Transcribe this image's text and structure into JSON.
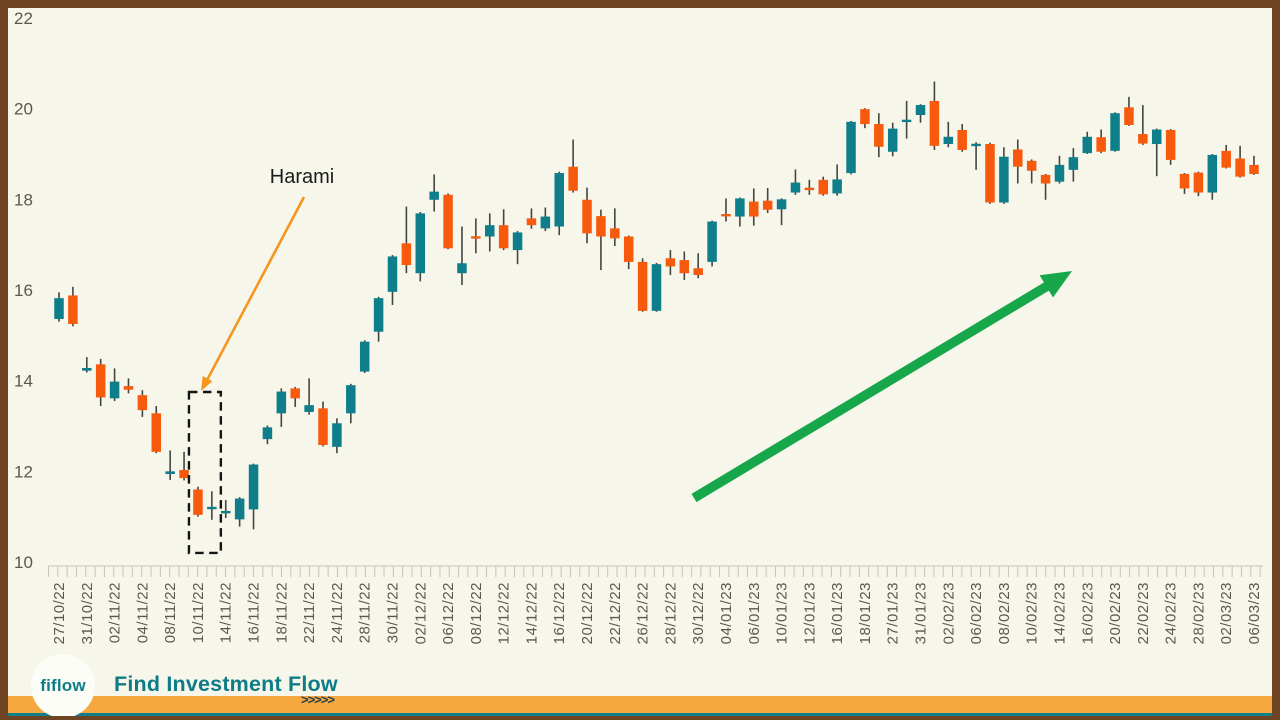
{
  "chart_data": {
    "type": "candlestick",
    "title": "",
    "y_axis": {
      "min": 10,
      "max": 22,
      "ticks": [
        22,
        20,
        18,
        16,
        14,
        12,
        10
      ]
    },
    "x_axis": {
      "labels": [
        "27/10/22",
        "31/10/22",
        "02/11/22",
        "04/11/22",
        "08/11/22",
        "10/11/22",
        "14/11/22",
        "16/11/22",
        "18/11/22",
        "22/11/22",
        "24/11/22",
        "28/11/22",
        "30/11/22",
        "02/12/22",
        "06/12/22",
        "08/12/22",
        "12/12/22",
        "14/12/22",
        "16/12/22",
        "20/12/22",
        "22/12/22",
        "26/12/22",
        "28/12/22",
        "30/12/22",
        "04/01/23",
        "06/01/23",
        "10/01/23",
        "12/01/23",
        "16/01/23",
        "18/01/23",
        "27/01/23",
        "31/01/23",
        "02/02/23",
        "06/02/23",
        "08/02/23",
        "10/02/23",
        "14/02/23",
        "16/02/23",
        "20/02/23",
        "22/02/23",
        "24/02/23",
        "28/02/23",
        "02/03/23",
        "06/03/23"
      ]
    },
    "grid": "off",
    "legend": "none",
    "candles": [
      {
        "date": "27/10/22",
        "o": 15.36,
        "h": 15.95,
        "l": 15.3,
        "c": 15.82
      },
      {
        "date": "",
        "o": 15.88,
        "h": 16.07,
        "l": 15.2,
        "c": 15.25
      },
      {
        "date": "31/10/22",
        "o": 14.22,
        "h": 14.52,
        "l": 14.18,
        "c": 14.28
      },
      {
        "date": "",
        "o": 14.36,
        "h": 14.48,
        "l": 13.44,
        "c": 13.63
      },
      {
        "date": "02/11/22",
        "o": 13.61,
        "h": 14.27,
        "l": 13.55,
        "c": 13.98
      },
      {
        "date": "",
        "o": 13.88,
        "h": 14.05,
        "l": 13.72,
        "c": 13.8
      },
      {
        "date": "04/11/22",
        "o": 13.68,
        "h": 13.79,
        "l": 13.2,
        "c": 13.35
      },
      {
        "date": "",
        "o": 13.28,
        "h": 13.44,
        "l": 12.4,
        "c": 12.43
      },
      {
        "date": "08/11/22",
        "o": 11.94,
        "h": 12.46,
        "l": 11.81,
        "c": 12.0
      },
      {
        "date": "",
        "o": 12.03,
        "h": 12.43,
        "l": 11.8,
        "c": 11.85
      },
      {
        "date": "10/11/22",
        "o": 11.6,
        "h": 11.66,
        "l": 11.0,
        "c": 11.04
      },
      {
        "date": "",
        "o": 11.17,
        "h": 11.56,
        "l": 10.93,
        "c": 11.21
      },
      {
        "date": "14/11/22",
        "o": 11.08,
        "h": 11.37,
        "l": 10.97,
        "c": 11.12
      },
      {
        "date": "",
        "o": 10.94,
        "h": 11.43,
        "l": 10.78,
        "c": 11.4
      },
      {
        "date": "16/11/22",
        "o": 11.16,
        "h": 12.17,
        "l": 10.72,
        "c": 12.15
      },
      {
        "date": "",
        "o": 12.71,
        "h": 13.01,
        "l": 12.6,
        "c": 12.97
      },
      {
        "date": "18/11/22",
        "o": 13.28,
        "h": 13.83,
        "l": 12.98,
        "c": 13.76
      },
      {
        "date": "",
        "o": 13.83,
        "h": 13.86,
        "l": 13.42,
        "c": 13.61
      },
      {
        "date": "22/11/22",
        "o": 13.31,
        "h": 14.05,
        "l": 13.25,
        "c": 13.46
      },
      {
        "date": "",
        "o": 13.39,
        "h": 13.54,
        "l": 12.55,
        "c": 12.58
      },
      {
        "date": "24/11/22",
        "o": 12.54,
        "h": 13.17,
        "l": 12.4,
        "c": 13.06
      },
      {
        "date": "",
        "o": 13.28,
        "h": 13.93,
        "l": 13.06,
        "c": 13.9
      },
      {
        "date": "28/11/22",
        "o": 14.2,
        "h": 14.89,
        "l": 14.17,
        "c": 14.86
      },
      {
        "date": "",
        "o": 15.08,
        "h": 15.85,
        "l": 14.86,
        "c": 15.82
      },
      {
        "date": "30/11/22",
        "o": 15.96,
        "h": 16.77,
        "l": 15.67,
        "c": 16.74
      },
      {
        "date": "",
        "o": 17.03,
        "h": 17.84,
        "l": 16.37,
        "c": 16.55
      },
      {
        "date": "02/12/22",
        "o": 16.37,
        "h": 17.72,
        "l": 16.19,
        "c": 17.69
      },
      {
        "date": "",
        "o": 17.99,
        "h": 18.55,
        "l": 17.73,
        "c": 18.17
      },
      {
        "date": "06/12/22",
        "o": 18.1,
        "h": 18.13,
        "l": 16.9,
        "c": 16.92
      },
      {
        "date": "",
        "o": 16.37,
        "h": 17.4,
        "l": 16.11,
        "c": 16.59
      },
      {
        "date": "08/12/22",
        "o": 17.18,
        "h": 17.58,
        "l": 16.81,
        "c": 17.14
      },
      {
        "date": "",
        "o": 17.18,
        "h": 17.69,
        "l": 16.85,
        "c": 17.43
      },
      {
        "date": "12/12/22",
        "o": 17.43,
        "h": 17.78,
        "l": 16.88,
        "c": 16.92
      },
      {
        "date": "",
        "o": 16.88,
        "h": 17.3,
        "l": 16.57,
        "c": 17.27
      },
      {
        "date": "14/12/22",
        "o": 17.58,
        "h": 17.8,
        "l": 17.35,
        "c": 17.43
      },
      {
        "date": "",
        "o": 17.36,
        "h": 17.82,
        "l": 17.3,
        "c": 17.62
      },
      {
        "date": "16/12/22",
        "o": 17.4,
        "h": 18.61,
        "l": 17.21,
        "c": 18.58
      },
      {
        "date": "",
        "o": 18.72,
        "h": 19.32,
        "l": 18.15,
        "c": 18.19
      },
      {
        "date": "20/12/22",
        "o": 17.99,
        "h": 18.26,
        "l": 17.03,
        "c": 17.25
      },
      {
        "date": "",
        "o": 17.63,
        "h": 17.77,
        "l": 16.44,
        "c": 17.18
      },
      {
        "date": "22/12/22",
        "o": 17.36,
        "h": 17.8,
        "l": 16.97,
        "c": 17.14
      },
      {
        "date": "",
        "o": 17.18,
        "h": 17.2,
        "l": 16.46,
        "c": 16.62
      },
      {
        "date": "26/12/22",
        "o": 16.62,
        "h": 16.7,
        "l": 15.52,
        "c": 15.54
      },
      {
        "date": "",
        "o": 15.54,
        "h": 16.6,
        "l": 15.52,
        "c": 16.57
      },
      {
        "date": "28/12/22",
        "o": 16.7,
        "h": 16.88,
        "l": 16.33,
        "c": 16.52
      },
      {
        "date": "",
        "o": 16.66,
        "h": 16.85,
        "l": 16.22,
        "c": 16.37
      },
      {
        "date": "30/12/22",
        "o": 16.48,
        "h": 16.81,
        "l": 16.26,
        "c": 16.33
      },
      {
        "date": "",
        "o": 16.62,
        "h": 17.53,
        "l": 16.52,
        "c": 17.51
      },
      {
        "date": "04/01/23",
        "o": 17.67,
        "h": 18.02,
        "l": 17.51,
        "c": 17.63
      },
      {
        "date": "",
        "o": 17.62,
        "h": 18.04,
        "l": 17.4,
        "c": 18.02
      },
      {
        "date": "06/01/23",
        "o": 17.95,
        "h": 18.24,
        "l": 17.42,
        "c": 17.62
      },
      {
        "date": "",
        "o": 17.97,
        "h": 18.25,
        "l": 17.7,
        "c": 17.77
      },
      {
        "date": "10/01/23",
        "o": 17.78,
        "h": 18.02,
        "l": 17.43,
        "c": 18.0
      },
      {
        "date": "",
        "o": 18.15,
        "h": 18.66,
        "l": 18.1,
        "c": 18.37
      },
      {
        "date": "12/01/23",
        "o": 18.25,
        "h": 18.43,
        "l": 18.1,
        "c": 18.21
      },
      {
        "date": "",
        "o": 18.43,
        "h": 18.5,
        "l": 18.08,
        "c": 18.11
      },
      {
        "date": "16/01/23",
        "o": 18.13,
        "h": 18.77,
        "l": 18.08,
        "c": 18.44
      },
      {
        "date": "",
        "o": 18.58,
        "h": 19.73,
        "l": 18.55,
        "c": 19.71
      },
      {
        "date": "18/01/23",
        "o": 19.99,
        "h": 20.01,
        "l": 19.57,
        "c": 19.66
      },
      {
        "date": "",
        "o": 19.66,
        "h": 19.9,
        "l": 18.93,
        "c": 19.16
      },
      {
        "date": "27/01/23",
        "o": 19.05,
        "h": 19.69,
        "l": 18.95,
        "c": 19.56
      },
      {
        "date": "",
        "o": 19.71,
        "h": 20.17,
        "l": 19.34,
        "c": 19.75
      },
      {
        "date": "31/01/23",
        "o": 19.86,
        "h": 20.1,
        "l": 19.69,
        "c": 20.08
      },
      {
        "date": "",
        "o": 20.17,
        "h": 20.6,
        "l": 19.09,
        "c": 19.18
      },
      {
        "date": "02/02/23",
        "o": 19.22,
        "h": 19.71,
        "l": 19.15,
        "c": 19.38
      },
      {
        "date": "",
        "o": 19.53,
        "h": 19.66,
        "l": 19.05,
        "c": 19.09
      },
      {
        "date": "06/02/23",
        "o": 19.18,
        "h": 19.26,
        "l": 18.65,
        "c": 19.22
      },
      {
        "date": "",
        "o": 19.22,
        "h": 19.25,
        "l": 17.9,
        "c": 17.93
      },
      {
        "date": "08/02/23",
        "o": 17.93,
        "h": 19.15,
        "l": 17.9,
        "c": 18.94
      },
      {
        "date": "",
        "o": 19.1,
        "h": 19.32,
        "l": 18.35,
        "c": 18.72
      },
      {
        "date": "10/02/23",
        "o": 18.85,
        "h": 18.88,
        "l": 18.35,
        "c": 18.63
      },
      {
        "date": "",
        "o": 18.54,
        "h": 18.56,
        "l": 17.99,
        "c": 18.35
      },
      {
        "date": "14/02/23",
        "o": 18.39,
        "h": 18.96,
        "l": 18.35,
        "c": 18.76
      },
      {
        "date": "",
        "o": 18.65,
        "h": 19.13,
        "l": 18.39,
        "c": 18.93
      },
      {
        "date": "16/02/23",
        "o": 19.02,
        "h": 19.49,
        "l": 19.0,
        "c": 19.38
      },
      {
        "date": "",
        "o": 19.37,
        "h": 19.54,
        "l": 19.02,
        "c": 19.05
      },
      {
        "date": "20/02/23",
        "o": 19.07,
        "h": 19.92,
        "l": 19.05,
        "c": 19.9
      },
      {
        "date": "",
        "o": 20.03,
        "h": 20.26,
        "l": 19.62,
        "c": 19.64
      },
      {
        "date": "22/02/23",
        "o": 19.44,
        "h": 20.08,
        "l": 19.2,
        "c": 19.23
      },
      {
        "date": "",
        "o": 19.22,
        "h": 19.56,
        "l": 18.51,
        "c": 19.54
      },
      {
        "date": "24/02/23",
        "o": 19.53,
        "h": 19.55,
        "l": 18.76,
        "c": 18.87
      },
      {
        "date": "",
        "o": 18.56,
        "h": 18.58,
        "l": 18.12,
        "c": 18.24
      },
      {
        "date": "28/02/23",
        "o": 18.59,
        "h": 18.61,
        "l": 18.07,
        "c": 18.15
      },
      {
        "date": "",
        "o": 18.15,
        "h": 19.0,
        "l": 17.99,
        "c": 18.98
      },
      {
        "date": "02/03/23",
        "o": 19.07,
        "h": 19.2,
        "l": 18.68,
        "c": 18.7
      },
      {
        "date": "",
        "o": 18.9,
        "h": 19.18,
        "l": 18.48,
        "c": 18.5
      },
      {
        "date": "06/03/23",
        "o": 18.76,
        "h": 18.96,
        "l": 18.54,
        "c": 18.56
      }
    ],
    "annotations": {
      "harami": {
        "label": "Harami",
        "box_candle_indices": [
          10,
          11
        ],
        "box_value_range": [
          10.2,
          13.75
        ],
        "arrow_color": "#f8951d"
      },
      "trend_arrow": {
        "direction": "up",
        "color": "#17a74b"
      }
    },
    "colors": {
      "bullish": "#0e7f8a",
      "bearish": "#f75a0d",
      "wick": "#45453f",
      "axis_text": "#58584f",
      "tick": "#c4c3b8",
      "annotation_text": "#1b1b1b",
      "box_stroke": "#141414"
    }
  },
  "footer": {
    "logo_text": "fiflow",
    "brand_text": "Find Investment Flow",
    "chevrons": ">>>>>"
  },
  "theme": {
    "background": "#f7f6eb",
    "frame": "#6e4423",
    "accent_bar": "#f6a840",
    "bottom_line": "#0e7f8a",
    "brand_teal": "#0e7c87"
  }
}
